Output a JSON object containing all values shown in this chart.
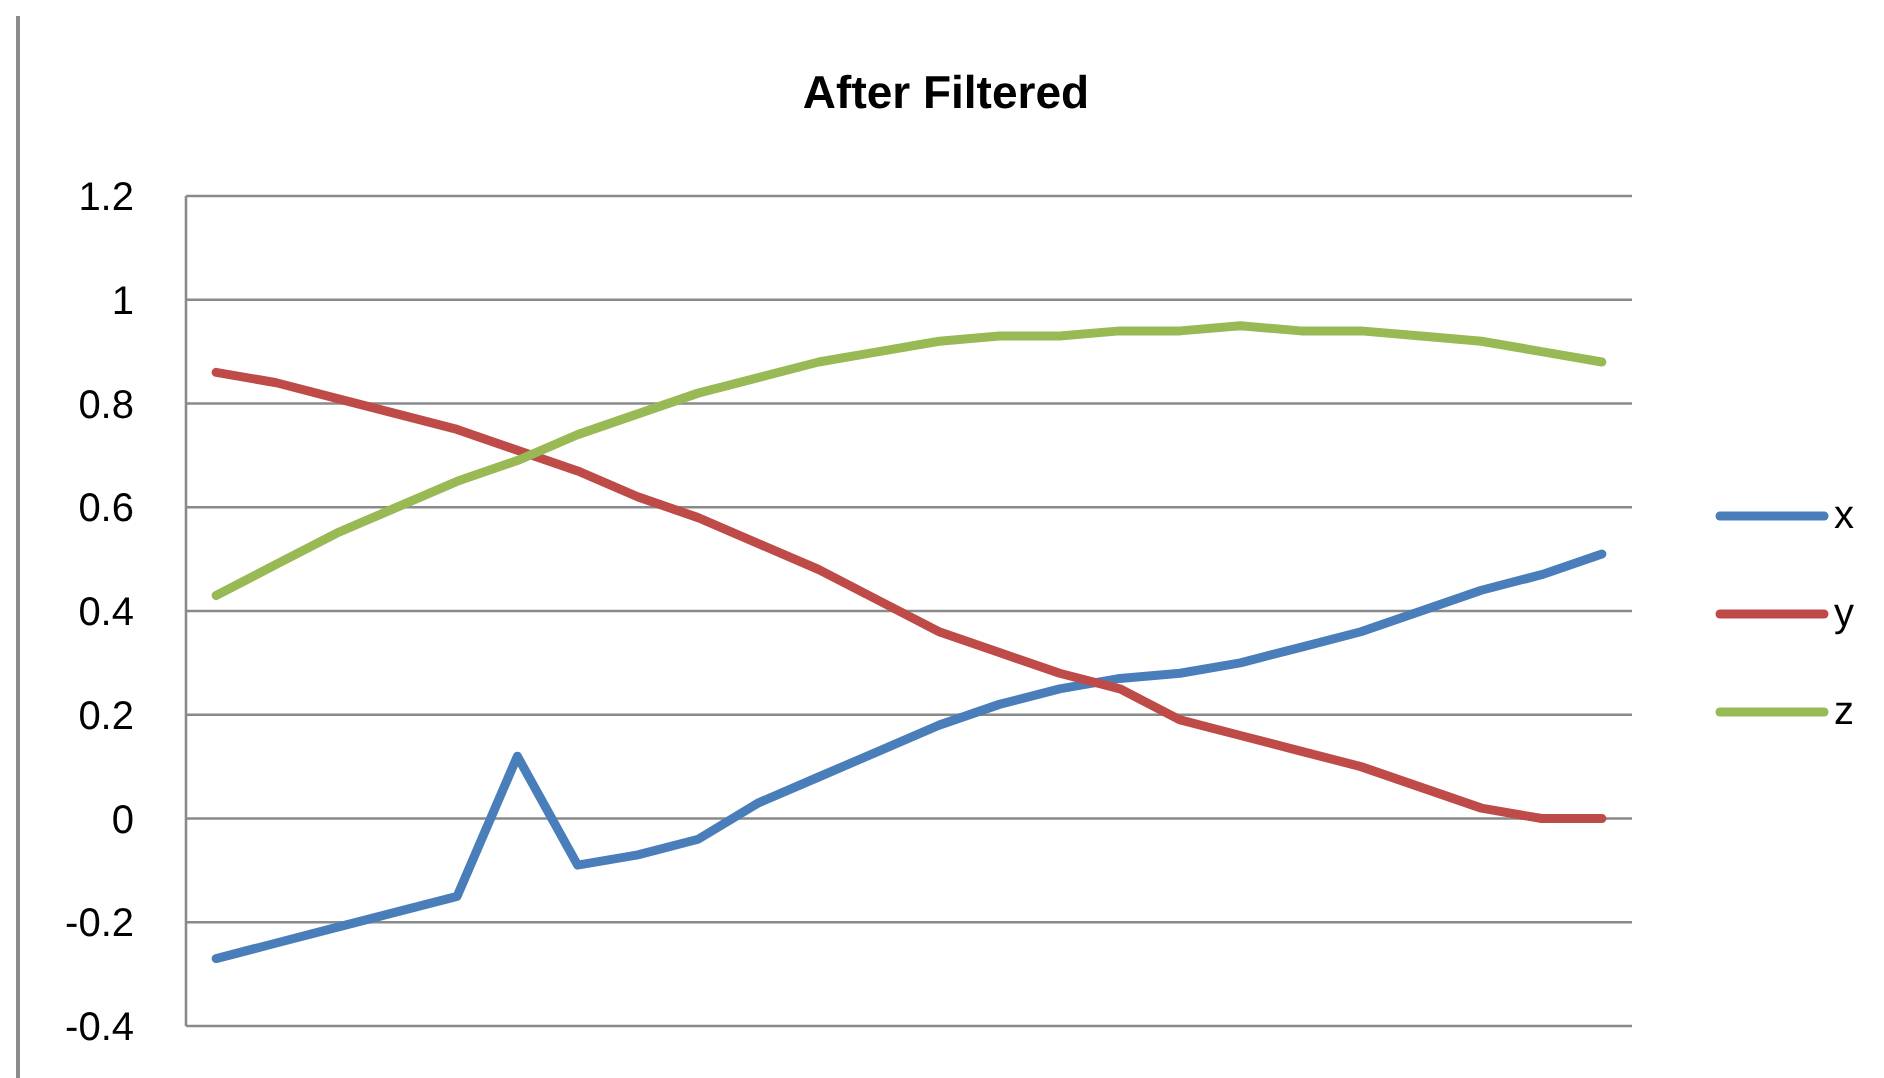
{
  "chart_data": {
    "type": "line",
    "title": "After Filtered",
    "categories": [
      null,
      null,
      null,
      null,
      null,
      null,
      null,
      null,
      null,
      null,
      null,
      null,
      null,
      null,
      null,
      null,
      null,
      null,
      null,
      null,
      null,
      null,
      null,
      null
    ],
    "series": [
      {
        "name": "x",
        "color": "#4a7ebb",
        "values": [
          -0.27,
          -0.24,
          -0.21,
          -0.18,
          -0.15,
          0.12,
          -0.09,
          -0.07,
          -0.04,
          0.03,
          0.08,
          0.13,
          0.18,
          0.22,
          0.25,
          0.27,
          0.28,
          0.3,
          0.33,
          0.36,
          0.4,
          0.44,
          0.47,
          0.51
        ]
      },
      {
        "name": "y",
        "color": "#be4b48",
        "values": [
          0.86,
          0.84,
          0.81,
          0.78,
          0.75,
          0.71,
          0.67,
          0.62,
          0.58,
          0.53,
          0.48,
          0.42,
          0.36,
          0.32,
          0.28,
          0.25,
          0.19,
          0.16,
          0.13,
          0.1,
          0.06,
          0.02,
          0.0,
          0.0
        ]
      },
      {
        "name": "z",
        "color": "#98b954",
        "values": [
          0.43,
          0.49,
          0.55,
          0.6,
          0.65,
          0.69,
          0.74,
          0.78,
          0.82,
          0.85,
          0.88,
          0.9,
          0.92,
          0.93,
          0.93,
          0.94,
          0.94,
          0.95,
          0.94,
          0.94,
          0.93,
          0.92,
          0.9,
          0.88
        ]
      }
    ],
    "ylim": [
      -0.4,
      1.2
    ],
    "yticks": [
      -0.4,
      -0.2,
      0,
      0.2,
      0.4,
      0.6,
      0.8,
      1,
      1.2
    ],
    "grid": "y",
    "legend": "right",
    "tick_labels": "y",
    "marker": "none",
    "line_style": "solid"
  }
}
